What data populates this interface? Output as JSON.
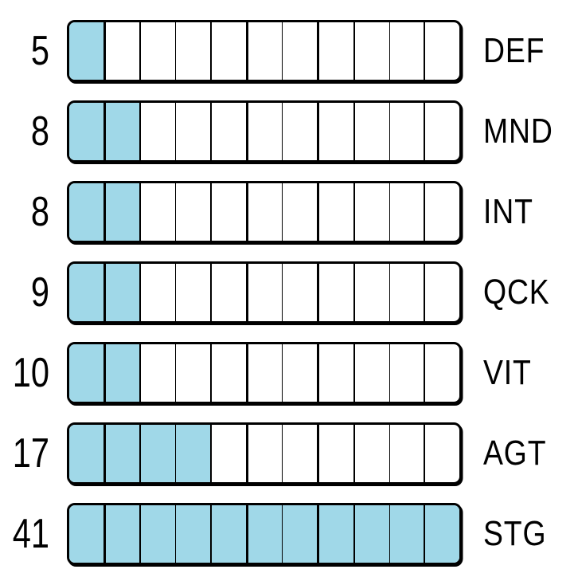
{
  "palette": {
    "fill": "#a0d8e8",
    "border": "#000000",
    "background": "#ffffff",
    "text": "#000000"
  },
  "segments_per_bar": 11,
  "stats": [
    {
      "value": "5",
      "label": "DEF",
      "filled_segments": 1
    },
    {
      "value": "8",
      "label": "MND",
      "filled_segments": 2
    },
    {
      "value": "8",
      "label": "INT",
      "filled_segments": 2
    },
    {
      "value": "9",
      "label": "QCK",
      "filled_segments": 2
    },
    {
      "value": "10",
      "label": "VIT",
      "filled_segments": 2
    },
    {
      "value": "17",
      "label": "AGT",
      "filled_segments": 4
    },
    {
      "value": "41",
      "label": "STG",
      "filled_segments": 11
    }
  ],
  "chart_data": {
    "type": "bar",
    "orientation": "horizontal",
    "categories": [
      "DEF",
      "MND",
      "INT",
      "QCK",
      "VIT",
      "AGT",
      "STG"
    ],
    "values": [
      5,
      8,
      8,
      9,
      10,
      17,
      41
    ],
    "segments_per_bar": 11,
    "filled_segments": [
      1,
      2,
      2,
      2,
      2,
      4,
      11
    ],
    "value_label_side": "left",
    "category_label_side": "right",
    "fill_color": "#a0d8e8",
    "title": "",
    "xlabel": "",
    "ylabel": "",
    "grid": false,
    "legend": false,
    "style": "hand-drawn segmented stat bars"
  }
}
